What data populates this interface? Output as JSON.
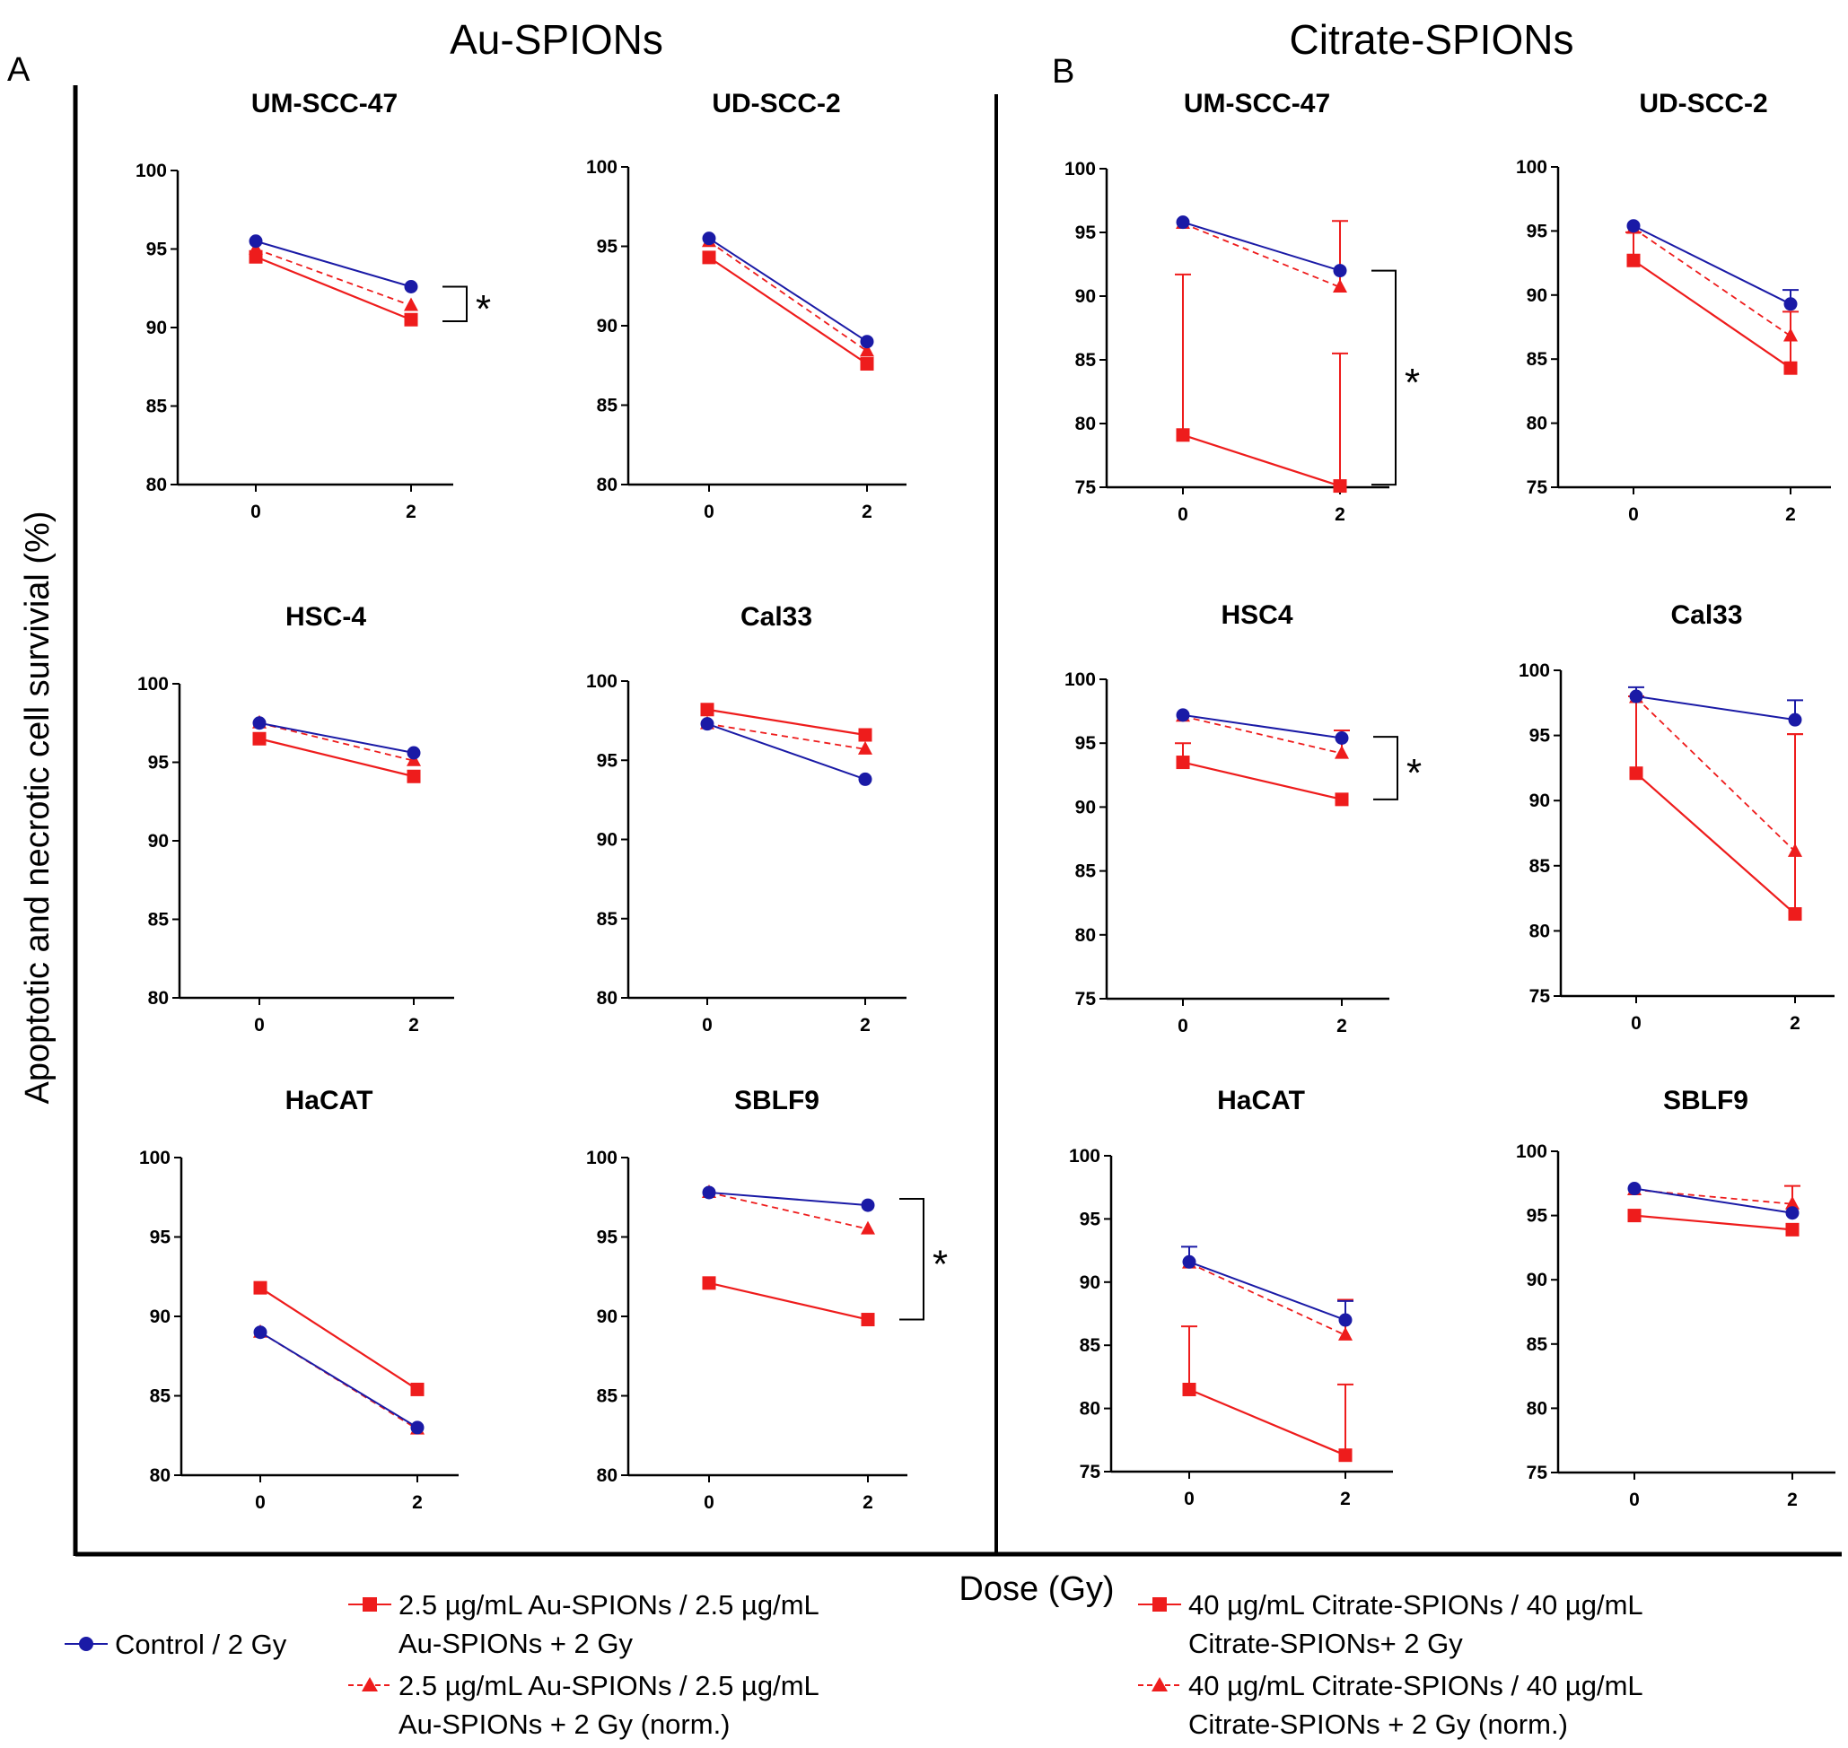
{
  "figure": {
    "panel_a_letter": "A",
    "panel_b_letter": "B",
    "section_a_title": "Au-SPIONs",
    "section_b_title": "Citrate-SPIONs",
    "ylabel": "Apoptotic and necrotic cell survivial (%)",
    "xlabel": "Dose (Gy)"
  },
  "colors": {
    "control": "#1a1aa6",
    "treated": "#ee1c1c",
    "frame": "#000000"
  },
  "legend": {
    "control": "Control / 2 Gy",
    "au_line1": "2.5 µg/mL Au-SPIONs / 2.5 µg/mL",
    "au_line2": "Au-SPIONs + 2 Gy",
    "au_norm_line1": "2.5 µg/mL Au-SPIONs / 2.5 µg/mL",
    "au_norm_line2": "Au-SPIONs + 2 Gy (norm.)",
    "cit_line1": "40 µg/mL Citrate-SPIONs / 40 µg/mL",
    "cit_line2": "Citrate-SPIONs+ 2 Gy",
    "cit_norm_line1": "40 µg/mL Citrate-SPIONs / 40 µg/mL",
    "cit_norm_line2": "Citrate-SPIONs + 2 Gy (norm.)"
  },
  "chart_data": [
    {
      "type": "line",
      "panel": "A",
      "title": "UM-SCC-47",
      "x": [
        "0",
        "2"
      ],
      "ylim": [
        80,
        100
      ],
      "yticks": [
        80,
        85,
        90,
        95,
        100
      ],
      "series": [
        {
          "name": "Control / 2 Gy",
          "values": [
            95.5,
            92.6
          ]
        },
        {
          "name": "Au-SPIONs",
          "values": [
            94.5,
            90.5
          ]
        },
        {
          "name": "Au-SPIONs (norm.)",
          "values": [
            95.0,
            91.4
          ]
        }
      ],
      "significance": {
        "label": "*",
        "from": 92.6,
        "to": 90.4
      }
    },
    {
      "type": "line",
      "panel": "A",
      "title": "UD-SCC-2",
      "x": [
        "0",
        "2"
      ],
      "ylim": [
        80,
        100
      ],
      "yticks": [
        80,
        85,
        90,
        95,
        100
      ],
      "series": [
        {
          "name": "Control / 2 Gy",
          "values": [
            95.5,
            89.0
          ]
        },
        {
          "name": "Au-SPIONs",
          "values": [
            94.3,
            87.6
          ]
        },
        {
          "name": "Au-SPIONs (norm.)",
          "values": [
            95.3,
            88.4
          ]
        }
      ]
    },
    {
      "type": "line",
      "panel": "A",
      "title": "HSC-4",
      "x": [
        "0",
        "2"
      ],
      "ylim": [
        80,
        100
      ],
      "yticks": [
        80,
        85,
        90,
        95,
        100
      ],
      "series": [
        {
          "name": "Control / 2 Gy",
          "values": [
            97.5,
            95.6
          ]
        },
        {
          "name": "Au-SPIONs",
          "values": [
            96.5,
            94.1
          ]
        },
        {
          "name": "Au-SPIONs (norm.)",
          "values": [
            97.5,
            95.1
          ]
        }
      ]
    },
    {
      "type": "line",
      "panel": "A",
      "title": "Cal33",
      "x": [
        "0",
        "2"
      ],
      "ylim": [
        80,
        100
      ],
      "yticks": [
        80,
        85,
        90,
        95,
        100
      ],
      "series": [
        {
          "name": "Control / 2 Gy",
          "values": [
            97.3,
            93.8
          ]
        },
        {
          "name": "Au-SPIONs",
          "values": [
            98.2,
            96.6
          ]
        },
        {
          "name": "Au-SPIONs (norm.)",
          "values": [
            97.3,
            95.7
          ]
        }
      ]
    },
    {
      "type": "line",
      "panel": "A",
      "title": "HaCAT",
      "x": [
        "0",
        "2"
      ],
      "ylim": [
        80,
        100
      ],
      "yticks": [
        80,
        85,
        90,
        95,
        100
      ],
      "series": [
        {
          "name": "Control / 2 Gy",
          "values": [
            89.0,
            83.0
          ]
        },
        {
          "name": "Au-SPIONs",
          "values": [
            91.8,
            85.4
          ]
        },
        {
          "name": "Au-SPIONs (norm.)",
          "values": [
            89.0,
            82.9
          ]
        }
      ]
    },
    {
      "type": "line",
      "panel": "A",
      "title": "SBLF9",
      "x": [
        "0",
        "2"
      ],
      "ylim": [
        80,
        100
      ],
      "yticks": [
        80,
        85,
        90,
        95,
        100
      ],
      "series": [
        {
          "name": "Control / 2 Gy",
          "values": [
            97.8,
            97.0
          ]
        },
        {
          "name": "Au-SPIONs",
          "values": [
            92.1,
            89.8
          ]
        },
        {
          "name": "Au-SPIONs (norm.)",
          "values": [
            97.8,
            95.5
          ]
        }
      ],
      "significance": {
        "label": "*",
        "from": 97.4,
        "to": 89.8
      }
    },
    {
      "type": "line",
      "panel": "B",
      "title": "UM-SCC-47",
      "x": [
        "0",
        "2"
      ],
      "ylim": [
        75,
        100
      ],
      "yticks": [
        75,
        80,
        85,
        90,
        95,
        100
      ],
      "series": [
        {
          "name": "Control / 2 Gy",
          "values": [
            95.8,
            92.0
          ]
        },
        {
          "name": "Citrate-SPIONs",
          "values": [
            79.1,
            75.1
          ],
          "err": [
            12.6,
            10.4
          ]
        },
        {
          "name": "Citrate-SPIONs (norm.)",
          "values": [
            95.7,
            90.7
          ],
          "err": [
            0,
            5.2
          ]
        }
      ],
      "significance": {
        "label": "*",
        "from": 92.0,
        "to": 75.2
      }
    },
    {
      "type": "line",
      "panel": "B",
      "title": "UD-SCC-2",
      "x": [
        "0",
        "2"
      ],
      "ylim": [
        75,
        100
      ],
      "yticks": [
        75,
        80,
        85,
        90,
        95,
        100
      ],
      "series": [
        {
          "name": "Control / 2 Gy",
          "values": [
            95.4,
            89.3
          ],
          "err": [
            0,
            1.1
          ]
        },
        {
          "name": "Citrate-SPIONs",
          "values": [
            92.7,
            84.3
          ],
          "err": [
            2.2,
            4.4
          ]
        },
        {
          "name": "Citrate-SPIONs (norm.)",
          "values": [
            95.2,
            86.8
          ],
          "err": [
            0,
            0
          ]
        }
      ]
    },
    {
      "type": "line",
      "panel": "B",
      "title": "HSC4",
      "x": [
        "0",
        "2"
      ],
      "ylim": [
        75,
        100
      ],
      "yticks": [
        75,
        80,
        85,
        90,
        95,
        100
      ],
      "series": [
        {
          "name": "Control / 2 Gy",
          "values": [
            97.2,
            95.4
          ]
        },
        {
          "name": "Citrate-SPIONs",
          "values": [
            93.5,
            90.6
          ],
          "err": [
            1.5,
            0
          ]
        },
        {
          "name": "Citrate-SPIONs (norm.)",
          "values": [
            97.1,
            94.2
          ],
          "err": [
            0,
            1.8
          ]
        }
      ],
      "significance": {
        "label": "*",
        "from": 95.5,
        "to": 90.6
      }
    },
    {
      "type": "line",
      "panel": "B",
      "title": "Cal33",
      "x": [
        "0",
        "2"
      ],
      "ylim": [
        75,
        100
      ],
      "yticks": [
        75,
        80,
        85,
        90,
        95,
        100
      ],
      "series": [
        {
          "name": "Control / 2 Gy",
          "values": [
            98.0,
            96.2
          ],
          "err": [
            0.7,
            1.5
          ]
        },
        {
          "name": "Citrate-SPIONs",
          "values": [
            92.1,
            81.3
          ],
          "err": [
            5.9,
            13.8
          ]
        },
        {
          "name": "Citrate-SPIONs (norm.)",
          "values": [
            97.9,
            86.1
          ],
          "err": [
            0,
            9.0
          ]
        }
      ]
    },
    {
      "type": "line",
      "panel": "B",
      "title": "HaCAT",
      "x": [
        "0",
        "2"
      ],
      "ylim": [
        75,
        100
      ],
      "yticks": [
        75,
        80,
        85,
        90,
        95,
        100
      ],
      "series": [
        {
          "name": "Control / 2 Gy",
          "values": [
            91.6,
            87.0
          ],
          "err": [
            1.2,
            1.5
          ]
        },
        {
          "name": "Citrate-SPIONs",
          "values": [
            81.5,
            76.3
          ],
          "err": [
            5.0,
            5.6
          ]
        },
        {
          "name": "Citrate-SPIONs (norm.)",
          "values": [
            91.5,
            85.8
          ],
          "err": [
            0,
            2.8
          ]
        }
      ]
    },
    {
      "type": "line",
      "panel": "B",
      "title": "SBLF9",
      "x": [
        "0",
        "2"
      ],
      "ylim": [
        75,
        100
      ],
      "yticks": [
        75,
        80,
        85,
        90,
        95,
        100
      ],
      "series": [
        {
          "name": "Control / 2 Gy",
          "values": [
            97.1,
            95.2
          ]
        },
        {
          "name": "Citrate-SPIONs",
          "values": [
            95.0,
            93.9
          ]
        },
        {
          "name": "Citrate-SPIONs (norm.)",
          "values": [
            97.0,
            95.9
          ],
          "err": [
            0,
            1.4
          ]
        }
      ]
    }
  ]
}
